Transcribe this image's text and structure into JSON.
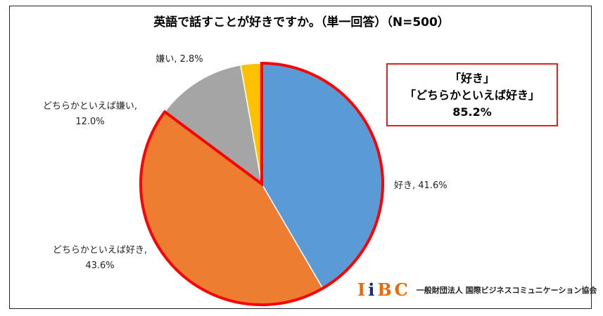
{
  "chart_data": {
    "type": "pie",
    "title": "英語で話すことが好きですか。（単一回答）（N=500）",
    "slices": [
      {
        "label": "好き",
        "value": 41.6,
        "display": "好き, 41.6%",
        "color": "#5b9bd5"
      },
      {
        "label": "どちらかといえば好き",
        "value": 43.6,
        "display": [
          "どちらかといえば好き,",
          "43.6%"
        ],
        "color": "#ed7d31"
      },
      {
        "label": "どちらかといえば嫌い",
        "value": 12.0,
        "display": [
          "どちらかといえば嫌い,",
          "12.0%"
        ],
        "color": "#a5a5a5"
      },
      {
        "label": "嫌い",
        "value": 2.8,
        "display": "嫌い, 2.8%",
        "color": "#ffc000"
      }
    ],
    "start_angle": "top",
    "direction": "clockwise",
    "highlight": {
      "slices": [
        "好き",
        "どちらかといえば好き"
      ],
      "outline_color": "#ff0000"
    },
    "annotation": [
      "「好き」",
      "「どちらかといえば好き」",
      "85.2%"
    ]
  },
  "logo": {
    "letters": [
      "I",
      "i",
      "B",
      "C"
    ],
    "letter_colors": [
      "#e36c0a",
      "#1f2a6b",
      "#e36c0a",
      "#e36c0a"
    ],
    "org": "一般財団法人 国際ビジネスコミュニケーション協会"
  }
}
